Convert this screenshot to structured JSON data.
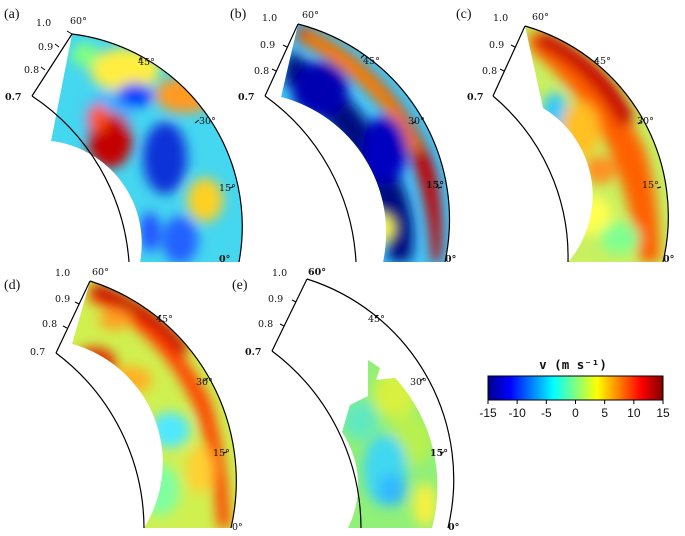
{
  "panels": [
    {
      "id": "a",
      "label": "(a)",
      "radial_ticks": [
        "0.7",
        "0.8",
        "0.9",
        "1.0"
      ],
      "angle_ticks": [
        "60°",
        "45°",
        "30°",
        "15°",
        "0°"
      ]
    },
    {
      "id": "b",
      "label": "(b)",
      "radial_ticks": [
        "0.7",
        "0.8",
        "0.9",
        "1.0"
      ],
      "angle_ticks": [
        "60°",
        "45°",
        "30°",
        "15°",
        "0°"
      ]
    },
    {
      "id": "c",
      "label": "(c)",
      "radial_ticks": [
        "0.7",
        "0.8",
        "0.9",
        "1.0"
      ],
      "angle_ticks": [
        "60°",
        "45°",
        "30°",
        "15°",
        "0°"
      ]
    },
    {
      "id": "d",
      "label": "(d)",
      "radial_ticks": [
        "0.7",
        "0.8",
        "0.9",
        "1.0"
      ],
      "angle_ticks": [
        "60°",
        "45°",
        "30°",
        "15°",
        "0°"
      ]
    },
    {
      "id": "e",
      "label": "(e)",
      "radial_ticks": [
        "0.7",
        "0.8",
        "0.9",
        "1.0"
      ],
      "angle_ticks": [
        "60°",
        "45°",
        "30°",
        "15°",
        "0°"
      ]
    }
  ],
  "colorbar": {
    "title": "v (m s⁻¹)",
    "ticks": [
      "-15",
      "-10",
      "-5",
      "0",
      "5",
      "10",
      "15"
    ],
    "range": [
      -15,
      15
    ]
  },
  "colors": {
    "jet": [
      "#00008f",
      "#0000ff",
      "#0080ff",
      "#00ffff",
      "#80ff80",
      "#ffff00",
      "#ff8000",
      "#ff0000",
      "#800000"
    ]
  }
}
